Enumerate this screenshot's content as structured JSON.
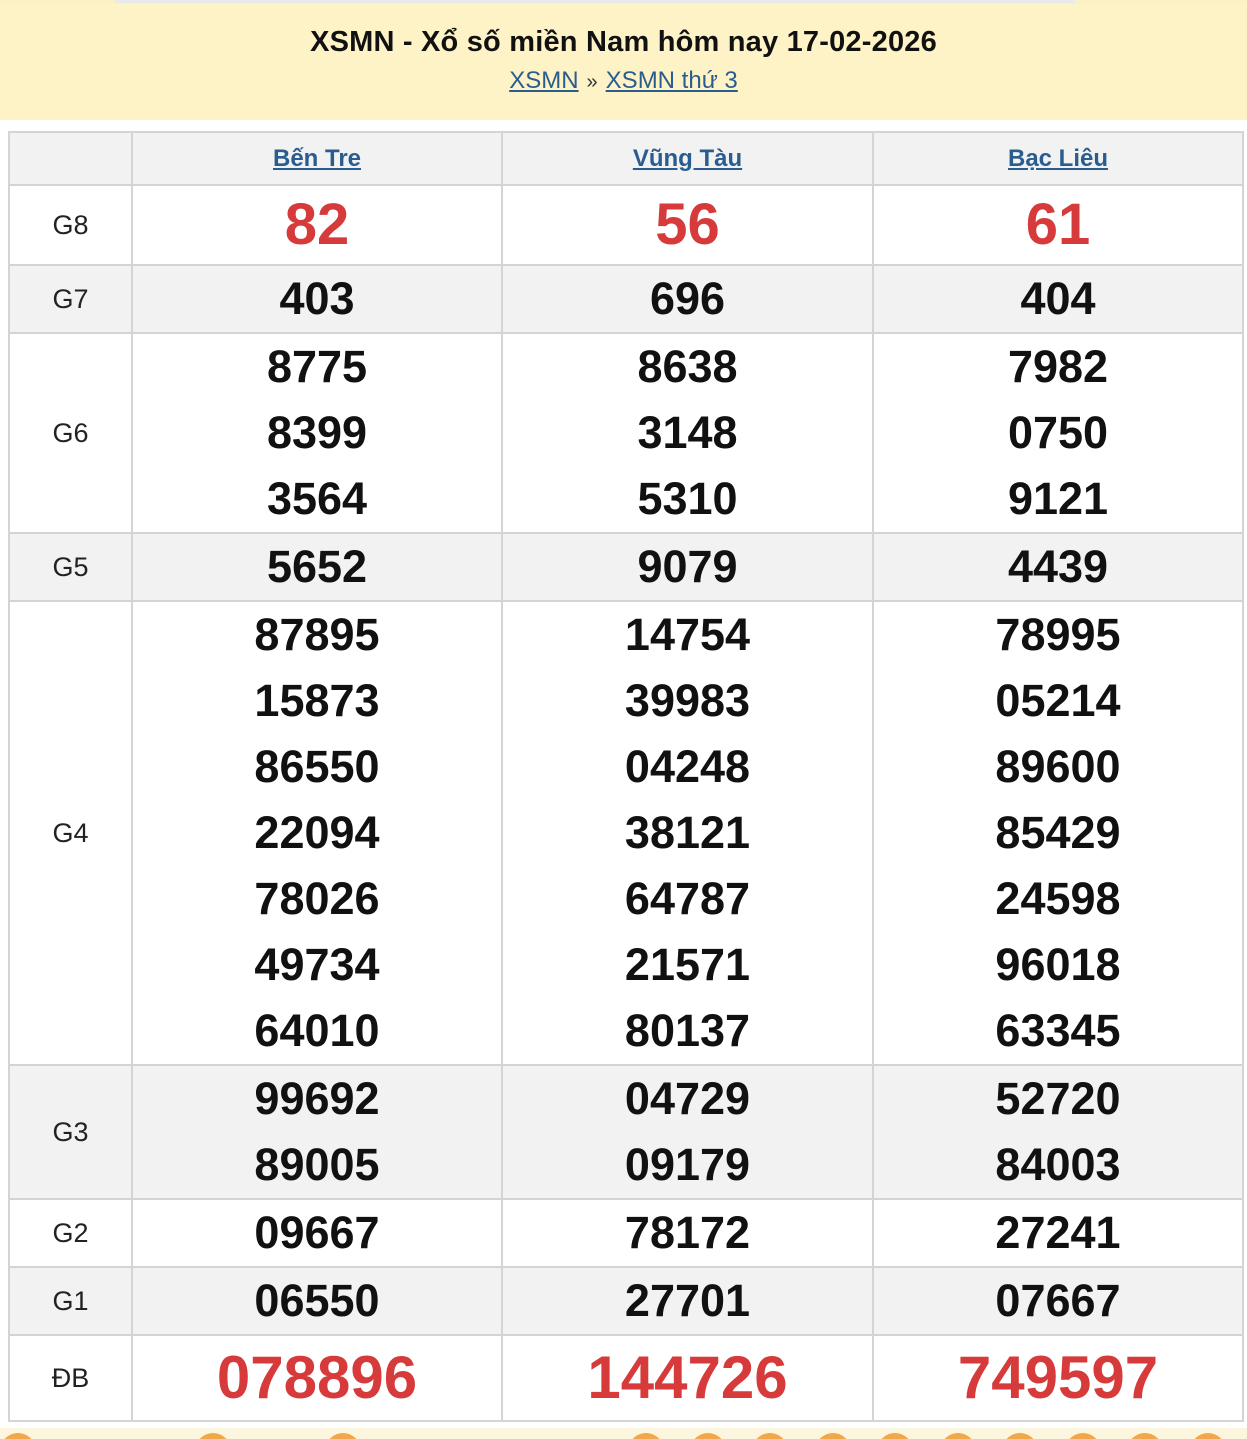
{
  "header": {
    "title": "XSMN - Xổ số miền Nam hôm nay 17-02-2026",
    "breadcrumb": [
      {
        "label": "XSMN"
      },
      {
        "label": "XSMN thứ 3"
      }
    ],
    "separator": "»"
  },
  "colors": {
    "header_bg": "#fdf3c6",
    "link": "#2a5d8f",
    "highlight_red": "#d63a3a",
    "row_alt": "#f2f2f2"
  },
  "provinces": [
    "Bến Tre",
    "Vũng Tàu",
    "Bạc Liêu"
  ],
  "prizes": [
    {
      "label": "G8",
      "red": true,
      "values": [
        [
          "82"
        ],
        [
          "56"
        ],
        [
          "61"
        ]
      ]
    },
    {
      "label": "G7",
      "values": [
        [
          "403"
        ],
        [
          "696"
        ],
        [
          "404"
        ]
      ]
    },
    {
      "label": "G6",
      "values": [
        [
          "8775",
          "8399",
          "3564"
        ],
        [
          "8638",
          "3148",
          "5310"
        ],
        [
          "7982",
          "0750",
          "9121"
        ]
      ]
    },
    {
      "label": "G5",
      "values": [
        [
          "5652"
        ],
        [
          "9079"
        ],
        [
          "4439"
        ]
      ]
    },
    {
      "label": "G4",
      "values": [
        [
          "87895",
          "15873",
          "86550",
          "22094",
          "78026",
          "49734",
          "64010"
        ],
        [
          "14754",
          "39983",
          "04248",
          "38121",
          "64787",
          "21571",
          "80137"
        ],
        [
          "78995",
          "05214",
          "89600",
          "85429",
          "24598",
          "96018",
          "63345"
        ]
      ]
    },
    {
      "label": "G3",
      "values": [
        [
          "99692",
          "89005"
        ],
        [
          "04729",
          "09179"
        ],
        [
          "52720",
          "84003"
        ]
      ]
    },
    {
      "label": "G2",
      "values": [
        [
          "09667"
        ],
        [
          "78172"
        ],
        [
          "27241"
        ]
      ]
    },
    {
      "label": "G1",
      "values": [
        [
          "06550"
        ],
        [
          "27701"
        ],
        [
          "07667"
        ]
      ]
    },
    {
      "label": "ĐB",
      "red": true,
      "values": [
        [
          "078896"
        ],
        [
          "144726"
        ],
        [
          "749597"
        ]
      ]
    }
  ]
}
